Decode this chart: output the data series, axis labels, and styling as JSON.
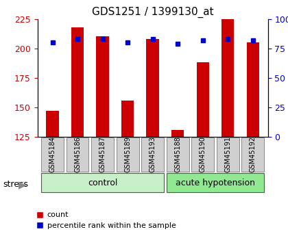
{
  "title": "GDS1251 / 1399130_at",
  "samples": [
    "GSM45184",
    "GSM45186",
    "GSM45187",
    "GSM45189",
    "GSM45193",
    "GSM45188",
    "GSM45190",
    "GSM45191",
    "GSM45192"
  ],
  "counts": [
    147,
    218,
    210,
    156,
    208,
    131,
    188,
    226,
    205
  ],
  "percentiles": [
    80,
    83,
    83,
    80,
    83,
    79,
    82,
    83,
    82
  ],
  "groups": [
    "control",
    "control",
    "control",
    "control",
    "control",
    "acute hypotension",
    "acute hypotension",
    "acute hypotension",
    "acute hypotension"
  ],
  "group_colors": [
    "#c8f0c8",
    "#90e890"
  ],
  "ylim_left": [
    125,
    225
  ],
  "ylim_right": [
    0,
    100
  ],
  "yticks_left": [
    125,
    150,
    175,
    200,
    225
  ],
  "yticks_right": [
    0,
    25,
    50,
    75,
    100
  ],
  "bar_color": "#cc0000",
  "dot_color": "#0000cc",
  "label_color_left": "#cc0000",
  "label_color_right": "#0000cc",
  "grid_color": "#999999",
  "bg_color": "#f0f0f0",
  "legend_count_label": "count",
  "legend_pct_label": "percentile rank within the sample",
  "stress_label": "stress",
  "group_names": [
    "control",
    "acute hypotension"
  ],
  "n_control": 5,
  "n_acute": 4
}
